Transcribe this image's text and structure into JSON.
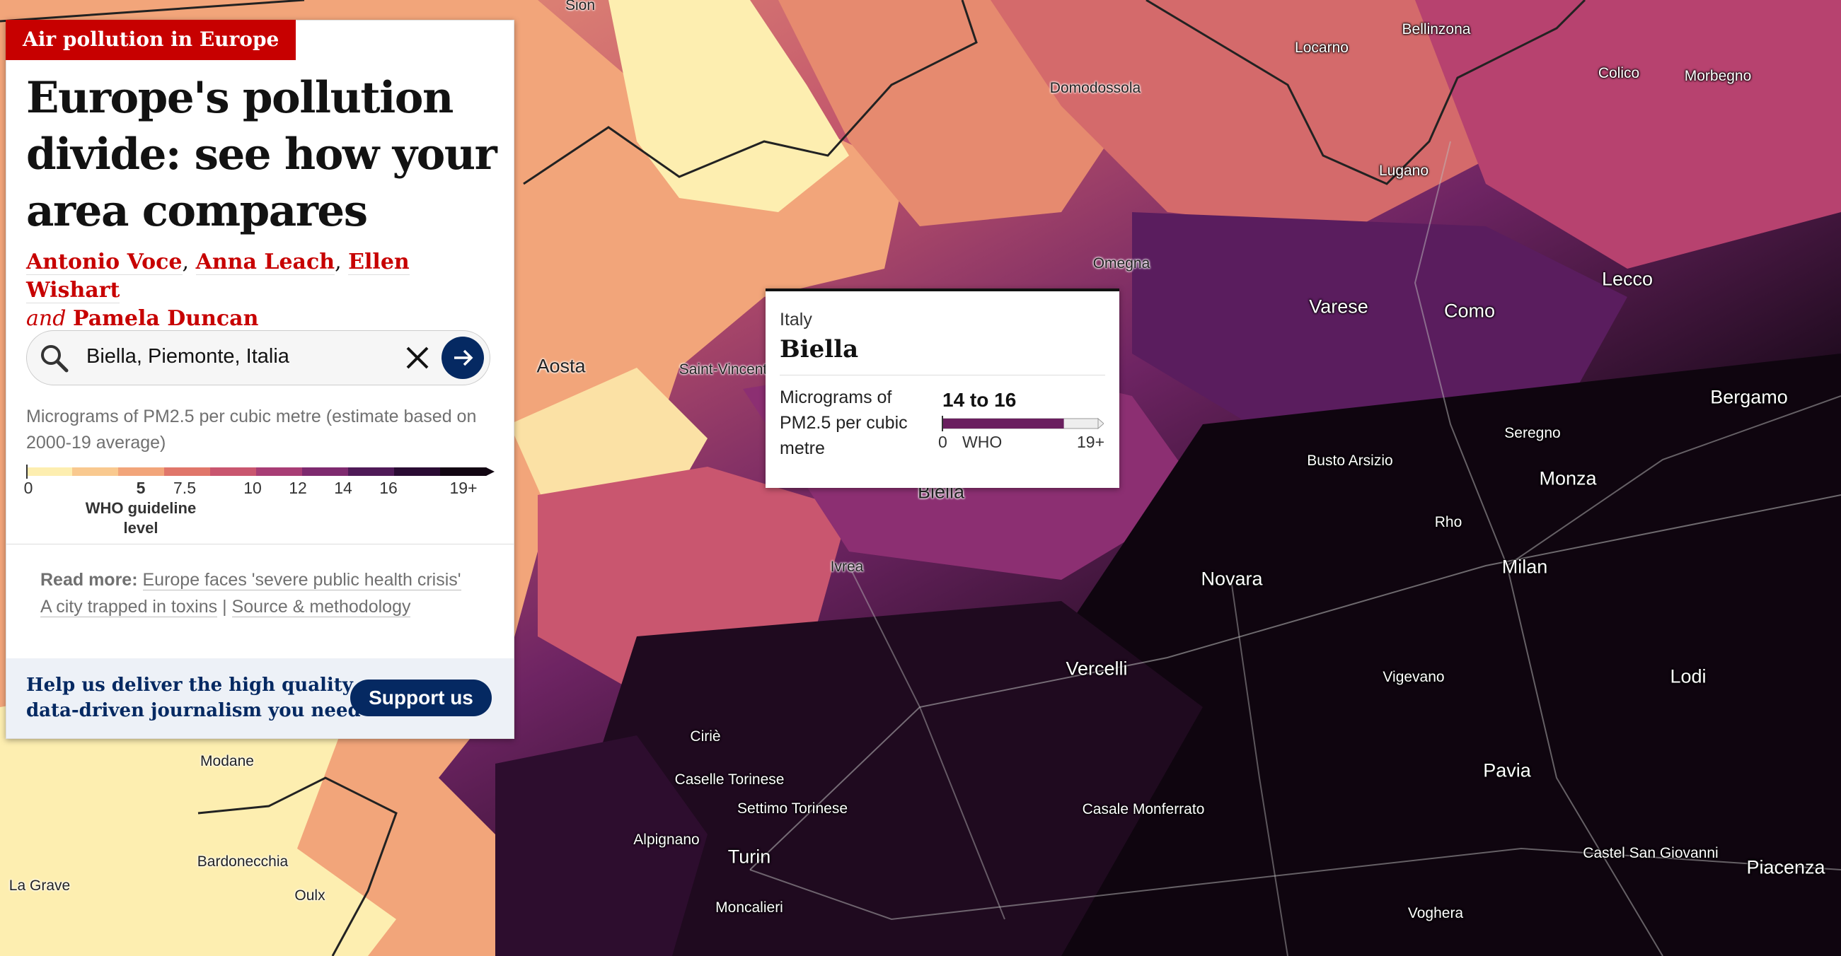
{
  "map": {
    "places": [
      {
        "name": "Sion",
        "cls": "sm"
      },
      {
        "name": "Locarno",
        "cls": "sm"
      },
      {
        "name": "Bellinzona",
        "cls": "sm"
      },
      {
        "name": "Colico",
        "cls": "sm"
      },
      {
        "name": "Morbegno",
        "cls": "sm"
      },
      {
        "name": "Domodossola",
        "cls": "sm"
      },
      {
        "name": "Lugano",
        "cls": "sm"
      },
      {
        "name": "Omegna",
        "cls": "sm"
      },
      {
        "name": "Varese",
        "cls": "md"
      },
      {
        "name": "Como",
        "cls": "md"
      },
      {
        "name": "Lecco",
        "cls": "md"
      },
      {
        "name": "Aosta",
        "cls": "md"
      },
      {
        "name": "Saint-Vincent",
        "cls": "sm"
      },
      {
        "name": "Bergamo",
        "cls": "md"
      },
      {
        "name": "Seregno",
        "cls": "sm"
      },
      {
        "name": "Busto Arsizio",
        "cls": "sm"
      },
      {
        "name": "Monza",
        "cls": "md"
      },
      {
        "name": "Rho",
        "cls": "sm"
      },
      {
        "name": "Biella",
        "cls": "md"
      },
      {
        "name": "Ivrea",
        "cls": "sm"
      },
      {
        "name": "Novara",
        "cls": "md"
      },
      {
        "name": "Milan",
        "cls": "md"
      },
      {
        "name": "Vercelli",
        "cls": "md"
      },
      {
        "name": "Vigevano",
        "cls": "sm"
      },
      {
        "name": "Lodi",
        "cls": "md"
      },
      {
        "name": "Ciriè",
        "cls": "sm"
      },
      {
        "name": "Caselle Torinese",
        "cls": "sm"
      },
      {
        "name": "Settimo Torinese",
        "cls": "sm"
      },
      {
        "name": "Alpignano",
        "cls": "sm"
      },
      {
        "name": "Turin",
        "cls": "md"
      },
      {
        "name": "Moncalieri",
        "cls": "sm"
      },
      {
        "name": "Casale Monferrato",
        "cls": "sm"
      },
      {
        "name": "Pavia",
        "cls": "md"
      },
      {
        "name": "Castel San Giovanni",
        "cls": "sm"
      },
      {
        "name": "Piacenza",
        "cls": "md"
      },
      {
        "name": "Voghera",
        "cls": "sm"
      },
      {
        "name": "Modane",
        "cls": "sm"
      },
      {
        "name": "Bardonecchia",
        "cls": "sm"
      },
      {
        "name": "Oulx",
        "cls": "sm"
      },
      {
        "name": "La Grave",
        "cls": "sm"
      }
    ]
  },
  "panel": {
    "kicker": "Air pollution in Europe",
    "headline": "Europe's pollution divide: see how your area compares",
    "authors": [
      "Antonio Voce",
      "Anna Leach",
      "Ellen Wishart",
      "Pamela Duncan"
    ],
    "byline_and": "and",
    "search": {
      "value": "Biella, Piemonte, Italia",
      "icon": "search-icon",
      "clear_icon": "close-icon",
      "submit_icon": "arrow-right-icon"
    },
    "legend": {
      "description": "Micrograms of PM2.5 per cubic metre (estimate based on 2000-19 average)",
      "ticks": [
        "0",
        "5",
        "7.5",
        "10",
        "12",
        "14",
        "16",
        "19+"
      ],
      "who_label": "WHO guideline level",
      "colors": [
        "#fdeeb0",
        "#f9c98f",
        "#f2a57a",
        "#e0766a",
        "#c9566f",
        "#a83d75",
        "#7e2a6f",
        "#4f1a57",
        "#2a0b33",
        "#120612"
      ]
    },
    "readmore": {
      "label": "Read more:",
      "link1": "Europe faces 'severe public health crisis'",
      "link2": "A city trapped in toxins",
      "separator": "|",
      "link3": "Source & methodology"
    },
    "support": {
      "text": "Help us deliver the high quality, data-driven journalism you need",
      "button": "Support us"
    }
  },
  "tooltip": {
    "country": "Italy",
    "place": "Biella",
    "description": "Micrograms of PM2.5 per cubic metre",
    "range": "14 to 16",
    "scale_min": "0",
    "scale_who": "WHO",
    "scale_max": "19+",
    "level_fraction": 0.78,
    "color": "#6a1f5f"
  }
}
